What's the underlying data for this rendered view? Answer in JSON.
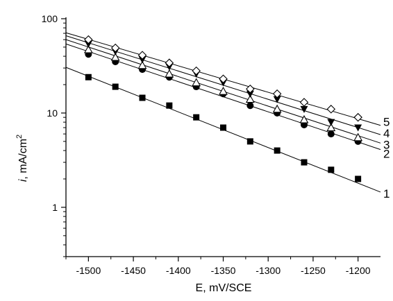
{
  "chart_data": {
    "type": "scatter",
    "xlabel": "E, mV/SCE",
    "ylabel": "i, mA/cm²",
    "ylabel_parts": {
      "var": "i",
      "rest": ", mA/cm",
      "sup": "2"
    },
    "xlim": [
      -1525,
      -1175
    ],
    "ylim": [
      0.3,
      100
    ],
    "yscale": "log",
    "x_ticks": [
      -1500,
      -1450,
      -1400,
      -1350,
      -1300,
      -1250,
      -1200
    ],
    "x_tick_labels": [
      "-1500",
      "-1450",
      "-1400",
      "-1350",
      "-1300",
      "-1250",
      "-1200"
    ],
    "y_ticks": [
      1,
      10,
      100
    ],
    "y_tick_labels": [
      "1",
      "10",
      "100"
    ],
    "grid": false,
    "x": [
      -1500,
      -1470,
      -1440,
      -1410,
      -1380,
      -1350,
      -1320,
      -1290,
      -1260,
      -1230,
      -1200
    ],
    "series": [
      {
        "label": "1",
        "marker": "square-filled",
        "values": [
          24,
          19,
          14.5,
          12,
          9,
          7,
          5,
          4,
          3,
          2.5,
          2
        ],
        "fit": [
          [
            -1525,
            30.5
          ],
          [
            -1175,
            1.45
          ]
        ]
      },
      {
        "label": "2",
        "marker": "circle-filled",
        "values": [
          42,
          35,
          29,
          24,
          19,
          16,
          12,
          10,
          7.5,
          6,
          5
        ],
        "fit": [
          [
            -1525,
            54
          ],
          [
            -1175,
            4.1
          ]
        ]
      },
      {
        "label": "3",
        "marker": "triangle-open",
        "values": [
          47,
          39,
          32,
          26,
          21,
          17,
          14,
          11,
          8.5,
          7,
          5.5
        ],
        "fit": [
          [
            -1525,
            60
          ],
          [
            -1175,
            4.8
          ]
        ]
      },
      {
        "label": "4",
        "marker": "triangle-down-filled",
        "values": [
          54,
          45,
          37,
          31,
          26,
          21,
          16,
          14,
          11,
          8,
          7
        ],
        "fit": [
          [
            -1525,
            66
          ],
          [
            -1175,
            5.9
          ]
        ]
      },
      {
        "label": "5",
        "marker": "diamond-open",
        "values": [
          60,
          49,
          41,
          34,
          28,
          23,
          18,
          16,
          13,
          11,
          9
        ],
        "fit": [
          [
            -1525,
            71
          ],
          [
            -1175,
            7.4
          ]
        ]
      }
    ]
  }
}
